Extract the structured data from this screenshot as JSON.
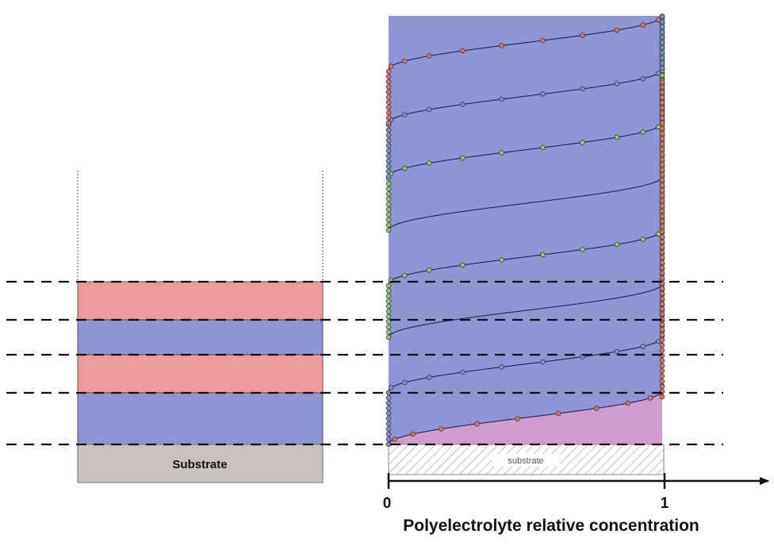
{
  "left_stack": {
    "layers": [
      "pink",
      "blue",
      "pink",
      "blue"
    ],
    "substrate_label": "Substrate"
  },
  "right_profile": {
    "layers": [
      "blue",
      "pink",
      "blue",
      "pink",
      "blue",
      "pink",
      "blue",
      "pink"
    ],
    "substrate_label": "substrate"
  },
  "axis": {
    "tick_start": "0",
    "tick_end": "1",
    "label": "Polyelectrolyte relative concentration"
  },
  "colors": {
    "pink": "#f09a9c",
    "blue": "#8e95d2",
    "overlap": "#cf9ccc",
    "substrate": "#c9c1bd",
    "dot_red": "#e07366",
    "dot_blue": "#7c8fcf",
    "dot_green": "#94c86c"
  }
}
